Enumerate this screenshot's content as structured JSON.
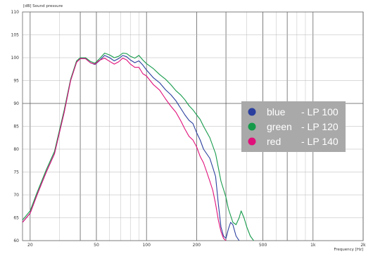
{
  "chart_data": {
    "type": "line",
    "title": "",
    "ylabel": "[dB]  Sound pressure",
    "xlabel": "Frequency  [Hz]",
    "x_scale": "log",
    "xlim": [
      18,
      2000
    ],
    "ylim": [
      60,
      110
    ],
    "grid": true,
    "y_ticks": [
      60,
      65,
      70,
      75,
      80,
      85,
      90,
      95,
      100,
      105,
      110
    ],
    "x_ticks": [
      {
        "value": 20,
        "label": "20"
      },
      {
        "value": 50,
        "label": "50"
      },
      {
        "value": 100,
        "label": "100"
      },
      {
        "value": 200,
        "label": "200"
      },
      {
        "value": 500,
        "label": "500"
      },
      {
        "value": 1000,
        "label": "1k"
      },
      {
        "value": 2000,
        "label": "2k"
      }
    ],
    "x_major_lines": [
      40,
      300,
      700
    ],
    "legend": {
      "placement": "right",
      "entries": [
        {
          "color_name": "blue",
          "label": "LP 100",
          "color": "#2a3f9e"
        },
        {
          "color_name": "green",
          "label": "LP 120",
          "color": "#159a4a"
        },
        {
          "color_name": "red",
          "label": "LP 140",
          "color": "#e0107a"
        }
      ]
    },
    "series": [
      {
        "name": "LP 100",
        "color": "#2a3f9e",
        "points": [
          [
            18,
            64
          ],
          [
            20,
            66
          ],
          [
            22,
            70
          ],
          [
            25,
            75
          ],
          [
            28,
            79
          ],
          [
            32,
            88
          ],
          [
            35,
            95
          ],
          [
            38,
            99
          ],
          [
            40,
            99.8
          ],
          [
            43,
            99.8
          ],
          [
            46,
            98.9
          ],
          [
            49,
            98.5
          ],
          [
            52,
            99.3
          ],
          [
            56,
            100.5
          ],
          [
            60,
            100
          ],
          [
            64,
            99.3
          ],
          [
            68,
            99.8
          ],
          [
            72,
            100.5
          ],
          [
            76,
            100.2
          ],
          [
            80,
            99.5
          ],
          [
            85,
            98.9
          ],
          [
            90,
            99.3
          ],
          [
            95,
            98.4
          ],
          [
            100,
            97.3
          ],
          [
            110,
            95.6
          ],
          [
            120,
            94.5
          ],
          [
            130,
            93
          ],
          [
            140,
            91.9
          ],
          [
            150,
            90.6
          ],
          [
            160,
            89
          ],
          [
            170,
            87.5
          ],
          [
            180,
            86.3
          ],
          [
            190,
            85.6
          ],
          [
            200,
            83.6
          ],
          [
            210,
            82
          ],
          [
            220,
            80
          ],
          [
            240,
            78
          ],
          [
            250,
            76
          ],
          [
            260,
            74
          ],
          [
            270,
            68
          ],
          [
            280,
            63
          ],
          [
            290,
            61
          ],
          [
            300,
            60.5
          ],
          [
            310,
            62.5
          ],
          [
            320,
            64
          ],
          [
            330,
            63.5
          ],
          [
            345,
            61
          ],
          [
            360,
            60
          ]
        ]
      },
      {
        "name": "LP 120",
        "color": "#159a4a",
        "points": [
          [
            18,
            64.5
          ],
          [
            20,
            66.5
          ],
          [
            22,
            70.5
          ],
          [
            25,
            75.5
          ],
          [
            28,
            79.5
          ],
          [
            32,
            88.5
          ],
          [
            35,
            95.3
          ],
          [
            38,
            99.3
          ],
          [
            40,
            100
          ],
          [
            43,
            100
          ],
          [
            46,
            99.2
          ],
          [
            49,
            98.8
          ],
          [
            52,
            99.7
          ],
          [
            56,
            101
          ],
          [
            60,
            100.6
          ],
          [
            64,
            100
          ],
          [
            68,
            100.3
          ],
          [
            72,
            101
          ],
          [
            76,
            100.9
          ],
          [
            80,
            100.3
          ],
          [
            85,
            99.9
          ],
          [
            90,
            100.5
          ],
          [
            95,
            99.5
          ],
          [
            100,
            98.7
          ],
          [
            110,
            97.6
          ],
          [
            120,
            96.3
          ],
          [
            130,
            95.3
          ],
          [
            140,
            94.1
          ],
          [
            150,
            92.8
          ],
          [
            160,
            91.9
          ],
          [
            170,
            90.8
          ],
          [
            180,
            89.5
          ],
          [
            190,
            88.6
          ],
          [
            200,
            87.5
          ],
          [
            210,
            86.5
          ],
          [
            220,
            85
          ],
          [
            240,
            82.5
          ],
          [
            260,
            79
          ],
          [
            280,
            73
          ],
          [
            300,
            69.5
          ],
          [
            310,
            67
          ],
          [
            330,
            64
          ],
          [
            345,
            63.5
          ],
          [
            360,
            65
          ],
          [
            370,
            66.5
          ],
          [
            385,
            65
          ],
          [
            400,
            63
          ],
          [
            420,
            61
          ],
          [
            440,
            60
          ]
        ]
      },
      {
        "name": "LP 140",
        "color": "#e0107a",
        "points": [
          [
            18,
            64
          ],
          [
            20,
            66
          ],
          [
            22,
            70
          ],
          [
            25,
            75
          ],
          [
            28,
            79
          ],
          [
            32,
            88
          ],
          [
            35,
            95
          ],
          [
            38,
            99
          ],
          [
            40,
            99.8
          ],
          [
            43,
            99.8
          ],
          [
            46,
            98.9
          ],
          [
            49,
            98.6
          ],
          [
            52,
            99.4
          ],
          [
            56,
            99.9
          ],
          [
            60,
            99.2
          ],
          [
            64,
            98.6
          ],
          [
            68,
            99.1
          ],
          [
            72,
            99.9
          ],
          [
            76,
            99.5
          ],
          [
            80,
            98.6
          ],
          [
            85,
            97.9
          ],
          [
            90,
            97.9
          ],
          [
            95,
            96.5
          ],
          [
            100,
            96
          ],
          [
            110,
            94.1
          ],
          [
            120,
            92.9
          ],
          [
            130,
            91
          ],
          [
            140,
            89.4
          ],
          [
            150,
            88.1
          ],
          [
            160,
            86.3
          ],
          [
            170,
            84.4
          ],
          [
            180,
            82.8
          ],
          [
            190,
            82
          ],
          [
            200,
            80.5
          ],
          [
            210,
            78.4
          ],
          [
            220,
            77
          ],
          [
            230,
            75
          ],
          [
            240,
            73
          ],
          [
            250,
            71
          ],
          [
            260,
            68
          ],
          [
            270,
            64.5
          ],
          [
            280,
            62
          ],
          [
            290,
            60.5
          ],
          [
            300,
            60
          ]
        ]
      }
    ]
  }
}
